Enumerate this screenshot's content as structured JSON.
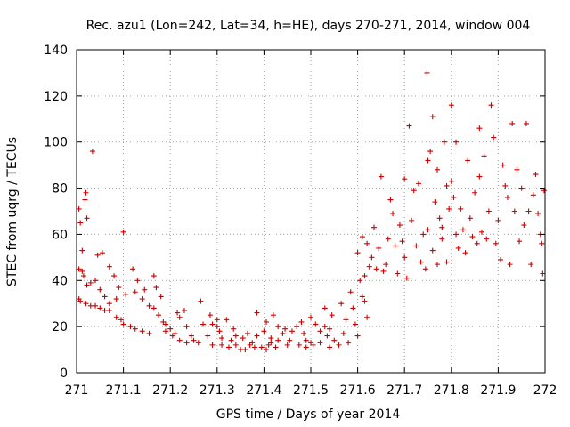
{
  "chart_data": {
    "type": "scatter",
    "title": "Rec. azu1 (Lon=242, Lat=34, h=HE), days 270-271, 2014, window 004",
    "xlabel": "GPS time / Days of year 2014",
    "ylabel": "STEC from uqrg / TECUs",
    "xlim": [
      271,
      272
    ],
    "ylim": [
      0,
      140
    ],
    "xticks": [
      "271",
      "271.1",
      "271.2",
      "271.3",
      "271.4",
      "271.5",
      "271.6",
      "271.7",
      "271.8",
      "271.9",
      "272"
    ],
    "yticks": [
      "0",
      "20",
      "40",
      "60",
      "80",
      "100",
      "120",
      "140"
    ],
    "grid": true,
    "marker": "+",
    "color": "#cc0000",
    "series": [
      {
        "points": [
          [
            271.005,
            71
          ],
          [
            271.008,
            65
          ],
          [
            271.012,
            53
          ],
          [
            271.018,
            75
          ],
          [
            271.02,
            78
          ],
          [
            271.022,
            67
          ],
          [
            271.034,
            96
          ],
          [
            271.045,
            51
          ],
          [
            271.055,
            52
          ],
          [
            271.07,
            46
          ],
          [
            271.005,
            45
          ],
          [
            271.012,
            44
          ],
          [
            271.015,
            42
          ],
          [
            271.022,
            38
          ],
          [
            271.03,
            39
          ],
          [
            271.04,
            40
          ],
          [
            271.05,
            36
          ],
          [
            271.06,
            33
          ],
          [
            271.07,
            30
          ],
          [
            271.085,
            32
          ],
          [
            271.005,
            32
          ],
          [
            271.008,
            31
          ],
          [
            271.02,
            30
          ],
          [
            271.03,
            29
          ],
          [
            271.04,
            29
          ],
          [
            271.05,
            28
          ],
          [
            271.06,
            27
          ],
          [
            271.07,
            27
          ],
          [
            271.085,
            24
          ],
          [
            271.095,
            23
          ],
          [
            271.1,
            61
          ],
          [
            271.08,
            42
          ],
          [
            271.09,
            37
          ],
          [
            271.105,
            34
          ],
          [
            271.12,
            45
          ],
          [
            271.13,
            40
          ],
          [
            271.125,
            35
          ],
          [
            271.145,
            36
          ],
          [
            271.14,
            32
          ],
          [
            271.155,
            29
          ],
          [
            271.1,
            21
          ],
          [
            271.115,
            20
          ],
          [
            271.125,
            19
          ],
          [
            271.14,
            18
          ],
          [
            271.155,
            17
          ],
          [
            271.165,
            42
          ],
          [
            271.17,
            37
          ],
          [
            271.18,
            33
          ],
          [
            271.165,
            28
          ],
          [
            271.185,
            22
          ],
          [
            271.175,
            25
          ],
          [
            271.19,
            21
          ],
          [
            271.2,
            19
          ],
          [
            271.205,
            16
          ],
          [
            271.215,
            26
          ],
          [
            271.22,
            24
          ],
          [
            271.23,
            27
          ],
          [
            271.235,
            20
          ],
          [
            271.245,
            16
          ],
          [
            271.25,
            14
          ],
          [
            271.19,
            18
          ],
          [
            271.21,
            17
          ],
          [
            271.22,
            14
          ],
          [
            271.235,
            13
          ],
          [
            271.26,
            13
          ],
          [
            271.265,
            31
          ],
          [
            271.27,
            21
          ],
          [
            271.28,
            16
          ],
          [
            271.285,
            25
          ],
          [
            271.29,
            12
          ],
          [
            271.3,
            20
          ],
          [
            271.305,
            18
          ],
          [
            271.31,
            15
          ],
          [
            271.32,
            23
          ],
          [
            271.33,
            14
          ],
          [
            271.34,
            12
          ],
          [
            271.35,
            10
          ],
          [
            271.36,
            10
          ],
          [
            271.375,
            13
          ],
          [
            271.385,
            16
          ],
          [
            271.29,
            21
          ],
          [
            271.3,
            23
          ],
          [
            271.31,
            12
          ],
          [
            271.325,
            11
          ],
          [
            271.335,
            19
          ],
          [
            271.34,
            16
          ],
          [
            271.355,
            15
          ],
          [
            271.365,
            17
          ],
          [
            271.37,
            12
          ],
          [
            271.38,
            11
          ],
          [
            271.385,
            26
          ],
          [
            271.395,
            11
          ],
          [
            271.405,
            10
          ],
          [
            271.41,
            12
          ],
          [
            271.415,
            13
          ],
          [
            271.42,
            25
          ],
          [
            271.425,
            11
          ],
          [
            271.43,
            14
          ],
          [
            271.44,
            17
          ],
          [
            271.445,
            19
          ],
          [
            271.4,
            18
          ],
          [
            271.405,
            22
          ],
          [
            271.415,
            15
          ],
          [
            271.43,
            20
          ],
          [
            271.45,
            12
          ],
          [
            271.455,
            14
          ],
          [
            271.46,
            18
          ],
          [
            271.47,
            20
          ],
          [
            271.475,
            12
          ],
          [
            271.48,
            22
          ],
          [
            271.485,
            17
          ],
          [
            271.49,
            14
          ],
          [
            271.5,
            24
          ],
          [
            271.505,
            12
          ],
          [
            271.51,
            21
          ],
          [
            271.52,
            18
          ],
          [
            271.53,
            28
          ],
          [
            271.535,
            16
          ],
          [
            271.54,
            11
          ],
          [
            271.545,
            25
          ],
          [
            271.49,
            11
          ],
          [
            271.5,
            13
          ],
          [
            271.52,
            13
          ],
          [
            271.53,
            20
          ],
          [
            271.54,
            19
          ],
          [
            271.55,
            14
          ],
          [
            271.56,
            12
          ],
          [
            271.565,
            30
          ],
          [
            271.57,
            17
          ],
          [
            271.575,
            23
          ],
          [
            271.58,
            13
          ],
          [
            271.585,
            35
          ],
          [
            271.59,
            28
          ],
          [
            271.595,
            21
          ],
          [
            271.6,
            16
          ],
          [
            271.605,
            40
          ],
          [
            271.61,
            33
          ],
          [
            271.615,
            31
          ],
          [
            271.62,
            24
          ],
          [
            271.625,
            46
          ],
          [
            271.6,
            52
          ],
          [
            271.61,
            59
          ],
          [
            271.615,
            42
          ],
          [
            271.62,
            56
          ],
          [
            271.63,
            50
          ],
          [
            271.635,
            63
          ],
          [
            271.64,
            45
          ],
          [
            271.645,
            54
          ],
          [
            271.65,
            85
          ],
          [
            271.655,
            44
          ],
          [
            271.66,
            47
          ],
          [
            271.665,
            58
          ],
          [
            271.67,
            75
          ],
          [
            271.675,
            69
          ],
          [
            271.68,
            55
          ],
          [
            271.685,
            43
          ],
          [
            271.69,
            64
          ],
          [
            271.695,
            57
          ],
          [
            271.7,
            50
          ],
          [
            271.705,
            41
          ],
          [
            271.7,
            84
          ],
          [
            271.71,
            107
          ],
          [
            271.715,
            66
          ],
          [
            271.72,
            79
          ],
          [
            271.725,
            55
          ],
          [
            271.73,
            82
          ],
          [
            271.735,
            48
          ],
          [
            271.74,
            60
          ],
          [
            271.745,
            45
          ],
          [
            271.75,
            92
          ],
          [
            271.748,
            130
          ],
          [
            271.755,
            96
          ],
          [
            271.76,
            111
          ],
          [
            271.765,
            74
          ],
          [
            271.77,
            88
          ],
          [
            271.775,
            67
          ],
          [
            271.78,
            58
          ],
          [
            271.785,
            100
          ],
          [
            271.79,
            81
          ],
          [
            271.795,
            71
          ],
          [
            271.75,
            62
          ],
          [
            271.76,
            53
          ],
          [
            271.77,
            47
          ],
          [
            271.78,
            63
          ],
          [
            271.79,
            48
          ],
          [
            271.8,
            83
          ],
          [
            271.805,
            76
          ],
          [
            271.81,
            60
          ],
          [
            271.815,
            54
          ],
          [
            271.82,
            71
          ],
          [
            271.8,
            116
          ],
          [
            271.81,
            100
          ],
          [
            271.825,
            62
          ],
          [
            271.83,
            52
          ],
          [
            271.835,
            92
          ],
          [
            271.84,
            67
          ],
          [
            271.845,
            59
          ],
          [
            271.85,
            78
          ],
          [
            271.855,
            56
          ],
          [
            271.86,
            85
          ],
          [
            271.86,
            106
          ],
          [
            271.865,
            61
          ],
          [
            271.87,
            94
          ],
          [
            271.875,
            58
          ],
          [
            271.88,
            70
          ],
          [
            271.885,
            116
          ],
          [
            271.89,
            102
          ],
          [
            271.895,
            56
          ],
          [
            271.9,
            66
          ],
          [
            271.905,
            49
          ],
          [
            271.91,
            90
          ],
          [
            271.915,
            81
          ],
          [
            271.92,
            76
          ],
          [
            271.925,
            47
          ],
          [
            271.93,
            108
          ],
          [
            271.935,
            70
          ],
          [
            271.94,
            88
          ],
          [
            271.945,
            57
          ],
          [
            271.95,
            80
          ],
          [
            271.955,
            64
          ],
          [
            271.96,
            108
          ],
          [
            271.965,
            70
          ],
          [
            271.97,
            47
          ],
          [
            271.975,
            77
          ],
          [
            271.98,
            86
          ],
          [
            271.985,
            69
          ],
          [
            271.99,
            60
          ],
          [
            271.995,
            43
          ],
          [
            271.998,
            79
          ],
          [
            271.993,
            56
          ]
        ]
      }
    ]
  }
}
